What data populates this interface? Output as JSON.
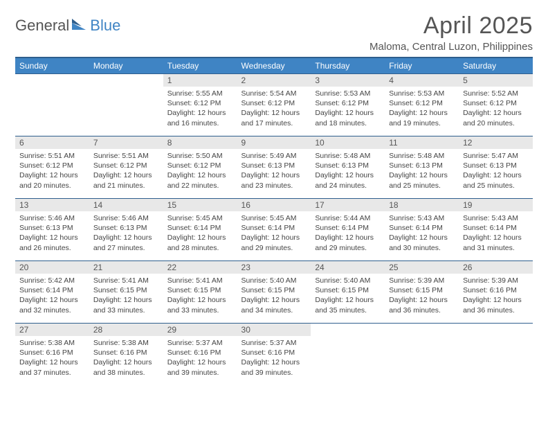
{
  "logo": {
    "part1": "General",
    "part2": "Blue"
  },
  "title": "April 2025",
  "location": "Maloma, Central Luzon, Philippines",
  "colors": {
    "header_bg": "#3f84c4",
    "header_border": "#2e5e8d",
    "daynum_bg": "#e8e8e8",
    "text": "#444444",
    "title_text": "#555555",
    "background": "#ffffff"
  },
  "day_labels": [
    "Sunday",
    "Monday",
    "Tuesday",
    "Wednesday",
    "Thursday",
    "Friday",
    "Saturday"
  ],
  "weeks": [
    [
      {
        "n": "",
        "sr": "",
        "ss": "",
        "dl": ""
      },
      {
        "n": "",
        "sr": "",
        "ss": "",
        "dl": ""
      },
      {
        "n": "1",
        "sr": "5:55 AM",
        "ss": "6:12 PM",
        "dl": "12 hours and 16 minutes."
      },
      {
        "n": "2",
        "sr": "5:54 AM",
        "ss": "6:12 PM",
        "dl": "12 hours and 17 minutes."
      },
      {
        "n": "3",
        "sr": "5:53 AM",
        "ss": "6:12 PM",
        "dl": "12 hours and 18 minutes."
      },
      {
        "n": "4",
        "sr": "5:53 AM",
        "ss": "6:12 PM",
        "dl": "12 hours and 19 minutes."
      },
      {
        "n": "5",
        "sr": "5:52 AM",
        "ss": "6:12 PM",
        "dl": "12 hours and 20 minutes."
      }
    ],
    [
      {
        "n": "6",
        "sr": "5:51 AM",
        "ss": "6:12 PM",
        "dl": "12 hours and 20 minutes."
      },
      {
        "n": "7",
        "sr": "5:51 AM",
        "ss": "6:12 PM",
        "dl": "12 hours and 21 minutes."
      },
      {
        "n": "8",
        "sr": "5:50 AM",
        "ss": "6:12 PM",
        "dl": "12 hours and 22 minutes."
      },
      {
        "n": "9",
        "sr": "5:49 AM",
        "ss": "6:13 PM",
        "dl": "12 hours and 23 minutes."
      },
      {
        "n": "10",
        "sr": "5:48 AM",
        "ss": "6:13 PM",
        "dl": "12 hours and 24 minutes."
      },
      {
        "n": "11",
        "sr": "5:48 AM",
        "ss": "6:13 PM",
        "dl": "12 hours and 25 minutes."
      },
      {
        "n": "12",
        "sr": "5:47 AM",
        "ss": "6:13 PM",
        "dl": "12 hours and 25 minutes."
      }
    ],
    [
      {
        "n": "13",
        "sr": "5:46 AM",
        "ss": "6:13 PM",
        "dl": "12 hours and 26 minutes."
      },
      {
        "n": "14",
        "sr": "5:46 AM",
        "ss": "6:13 PM",
        "dl": "12 hours and 27 minutes."
      },
      {
        "n": "15",
        "sr": "5:45 AM",
        "ss": "6:14 PM",
        "dl": "12 hours and 28 minutes."
      },
      {
        "n": "16",
        "sr": "5:45 AM",
        "ss": "6:14 PM",
        "dl": "12 hours and 29 minutes."
      },
      {
        "n": "17",
        "sr": "5:44 AM",
        "ss": "6:14 PM",
        "dl": "12 hours and 29 minutes."
      },
      {
        "n": "18",
        "sr": "5:43 AM",
        "ss": "6:14 PM",
        "dl": "12 hours and 30 minutes."
      },
      {
        "n": "19",
        "sr": "5:43 AM",
        "ss": "6:14 PM",
        "dl": "12 hours and 31 minutes."
      }
    ],
    [
      {
        "n": "20",
        "sr": "5:42 AM",
        "ss": "6:14 PM",
        "dl": "12 hours and 32 minutes."
      },
      {
        "n": "21",
        "sr": "5:41 AM",
        "ss": "6:15 PM",
        "dl": "12 hours and 33 minutes."
      },
      {
        "n": "22",
        "sr": "5:41 AM",
        "ss": "6:15 PM",
        "dl": "12 hours and 33 minutes."
      },
      {
        "n": "23",
        "sr": "5:40 AM",
        "ss": "6:15 PM",
        "dl": "12 hours and 34 minutes."
      },
      {
        "n": "24",
        "sr": "5:40 AM",
        "ss": "6:15 PM",
        "dl": "12 hours and 35 minutes."
      },
      {
        "n": "25",
        "sr": "5:39 AM",
        "ss": "6:15 PM",
        "dl": "12 hours and 36 minutes."
      },
      {
        "n": "26",
        "sr": "5:39 AM",
        "ss": "6:16 PM",
        "dl": "12 hours and 36 minutes."
      }
    ],
    [
      {
        "n": "27",
        "sr": "5:38 AM",
        "ss": "6:16 PM",
        "dl": "12 hours and 37 minutes."
      },
      {
        "n": "28",
        "sr": "5:38 AM",
        "ss": "6:16 PM",
        "dl": "12 hours and 38 minutes."
      },
      {
        "n": "29",
        "sr": "5:37 AM",
        "ss": "6:16 PM",
        "dl": "12 hours and 39 minutes."
      },
      {
        "n": "30",
        "sr": "5:37 AM",
        "ss": "6:16 PM",
        "dl": "12 hours and 39 minutes."
      },
      {
        "n": "",
        "sr": "",
        "ss": "",
        "dl": ""
      },
      {
        "n": "",
        "sr": "",
        "ss": "",
        "dl": ""
      },
      {
        "n": "",
        "sr": "",
        "ss": "",
        "dl": ""
      }
    ]
  ],
  "labels": {
    "sunrise": "Sunrise:",
    "sunset": "Sunset:",
    "daylight": "Daylight:"
  }
}
